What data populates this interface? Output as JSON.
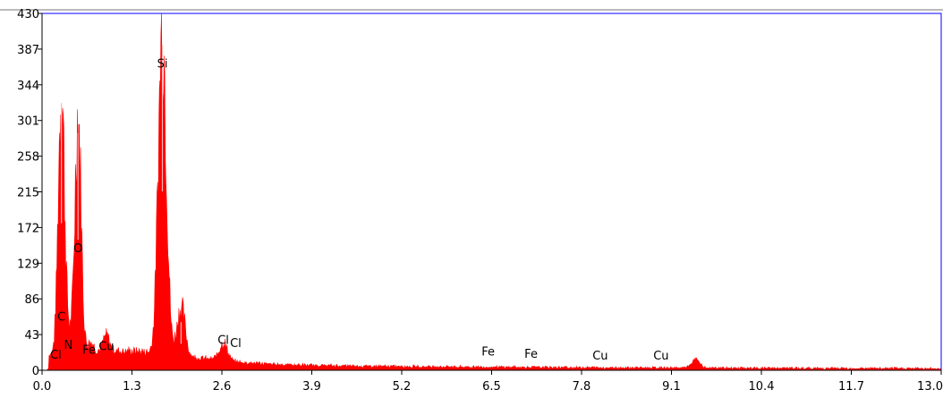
{
  "chart_data": {
    "type": "area",
    "title": "",
    "xlabel": "",
    "ylabel": "",
    "xlim": [
      0.0,
      13.0
    ],
    "ylim": [
      0,
      430
    ],
    "x_ticks": [
      "0.0",
      "1.3",
      "2.6",
      "3.9",
      "5.2",
      "6.5",
      "7.8",
      "9.1",
      "10.4",
      "11.7",
      "13.0"
    ],
    "y_ticks": [
      "0",
      "43",
      "86",
      "129",
      "172",
      "215",
      "258",
      "301",
      "344",
      "387",
      "430"
    ],
    "grid": false,
    "colors": {
      "fill": "#ff0000",
      "axes": "#0000ff",
      "peak_highlight": "#ffb3b3"
    },
    "peaks": [
      {
        "x": 0.28,
        "y": 322
      },
      {
        "x": 0.39,
        "y": 18
      },
      {
        "x": 0.52,
        "y": 286
      },
      {
        "x": 0.7,
        "y": 12
      },
      {
        "x": 0.93,
        "y": 18
      },
      {
        "x": 1.74,
        "y": 392
      },
      {
        "x": 2.01,
        "y": 58
      },
      {
        "x": 2.62,
        "y": 22
      },
      {
        "x": 9.45,
        "y": 10
      }
    ],
    "annotations": [
      {
        "text": "Si",
        "x": 1.74,
        "y": 365
      },
      {
        "text": "O",
        "x": 0.52,
        "y": 142
      },
      {
        "text": "C",
        "x": 0.28,
        "y": 60
      },
      {
        "text": "N",
        "x": 0.38,
        "y": 26
      },
      {
        "text": "Cl",
        "x": 0.2,
        "y": 14
      },
      {
        "text": "Fe",
        "x": 0.68,
        "y": 20
      },
      {
        "text": "Cu",
        "x": 0.93,
        "y": 24
      },
      {
        "text": "Cl",
        "x": 2.62,
        "y": 32
      },
      {
        "text": "Cl",
        "x": 2.8,
        "y": 28
      },
      {
        "text": "Fe",
        "x": 6.45,
        "y": 18
      },
      {
        "text": "Fe",
        "x": 7.07,
        "y": 15
      },
      {
        "text": "Cu",
        "x": 8.07,
        "y": 13
      },
      {
        "text": "Cu",
        "x": 8.95,
        "y": 13
      }
    ]
  }
}
